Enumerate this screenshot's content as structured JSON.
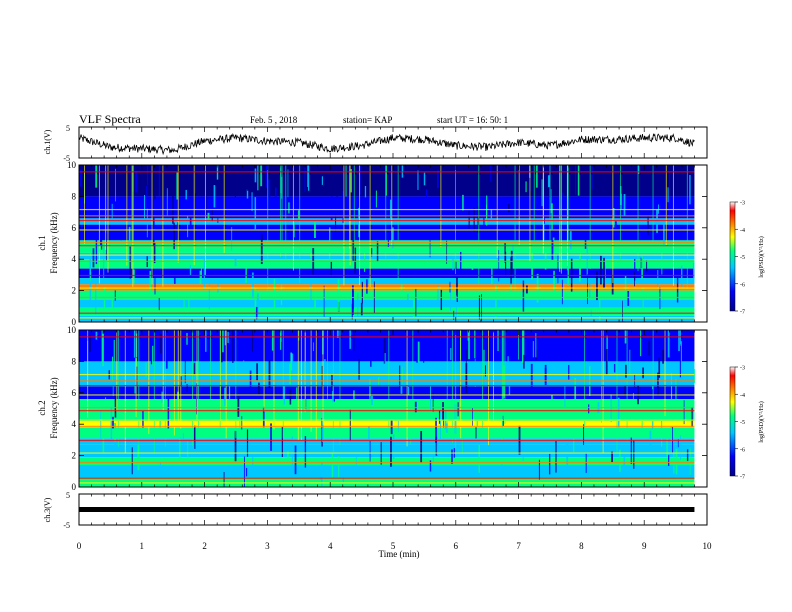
{
  "header": {
    "title": "VLF Spectra",
    "date": "Feb. 5 , 2018",
    "station": "station= KAP",
    "start": "start  UT  =   16: 50: 1"
  },
  "labels": {
    "ch1v_ylabel": "ch.1(V)",
    "ch1_ylabel_line1": "ch.1",
    "ch1_ylabel_line2": "Frequency  (kHz)",
    "ch2_ylabel_line1": "ch.2",
    "ch2_ylabel_line2": "Frequency  (kHz)",
    "ch3v_ylabel": "ch.3(V)",
    "xlabel": "Time  (min)",
    "colorbar_label": "log(PSD)(V²/Hz)"
  },
  "colors": {
    "colormap": [
      "#00008b",
      "#0000ff",
      "#00c8ff",
      "#00ff80",
      "#ffff00",
      "#ff8000",
      "#ff0000",
      "#ffffff"
    ],
    "waveform": "#000000"
  },
  "chart_data": [
    {
      "type": "line",
      "title": "VLF Spectra",
      "ylabel": "ch.1(V)",
      "xlim": [
        0,
        10
      ],
      "ylim": [
        -5,
        5
      ],
      "yticks": [
        "5",
        "-5"
      ],
      "series": [
        {
          "x": [
            0,
            0.5,
            1,
            1.5,
            2,
            2.5,
            3,
            3.5,
            4,
            4.5,
            5,
            5.5,
            6,
            6.5,
            7,
            7.5,
            8,
            8.5,
            9,
            9.5,
            9.8
          ],
          "y": [
            1.5,
            -1.5,
            -2,
            -2.5,
            0.5,
            1.5,
            0.5,
            0,
            -2,
            -1,
            1.5,
            1,
            -1,
            -1.5,
            0,
            -1,
            1,
            1,
            1.5,
            1.5,
            -0.5
          ]
        }
      ]
    },
    {
      "type": "heatmap",
      "ylabel": "ch.1 Frequency  (kHz)",
      "xlim": [
        0,
        10
      ],
      "ylim": [
        0,
        10
      ],
      "yticks": [
        "0",
        "2",
        "4",
        "6",
        "8",
        "10"
      ],
      "colorbar": {
        "label": "log(PSD)(V²/Hz)",
        "range": [
          -7,
          -3
        ],
        "ticks": [
          "-3",
          "-4",
          "-5",
          "-6",
          "-7"
        ]
      },
      "data_extent_min": 9.8
    },
    {
      "type": "heatmap",
      "ylabel": "ch.2 Frequency  (kHz)",
      "xlim": [
        0,
        10
      ],
      "ylim": [
        0,
        10
      ],
      "yticks": [
        "0",
        "2",
        "4",
        "6",
        "8",
        "10"
      ],
      "colorbar": {
        "label": "log(PSD)(V²/Hz)",
        "range": [
          -7,
          -3
        ],
        "ticks": [
          "-3",
          "-4",
          "-5",
          "-6",
          "-7"
        ]
      },
      "data_extent_min": 9.8
    },
    {
      "type": "line",
      "ylabel": "ch.3(V)",
      "xlabel": "Time  (min)",
      "xlim": [
        0,
        10
      ],
      "ylim": [
        -5,
        5
      ],
      "yticks": [
        "5",
        "-5"
      ],
      "xticks": [
        "0",
        "1",
        "2",
        "3",
        "4",
        "5",
        "6",
        "7",
        "8",
        "9",
        "10"
      ],
      "series": [
        {
          "x": [
            0,
            9.8
          ],
          "y": [
            0,
            0
          ]
        }
      ]
    }
  ]
}
